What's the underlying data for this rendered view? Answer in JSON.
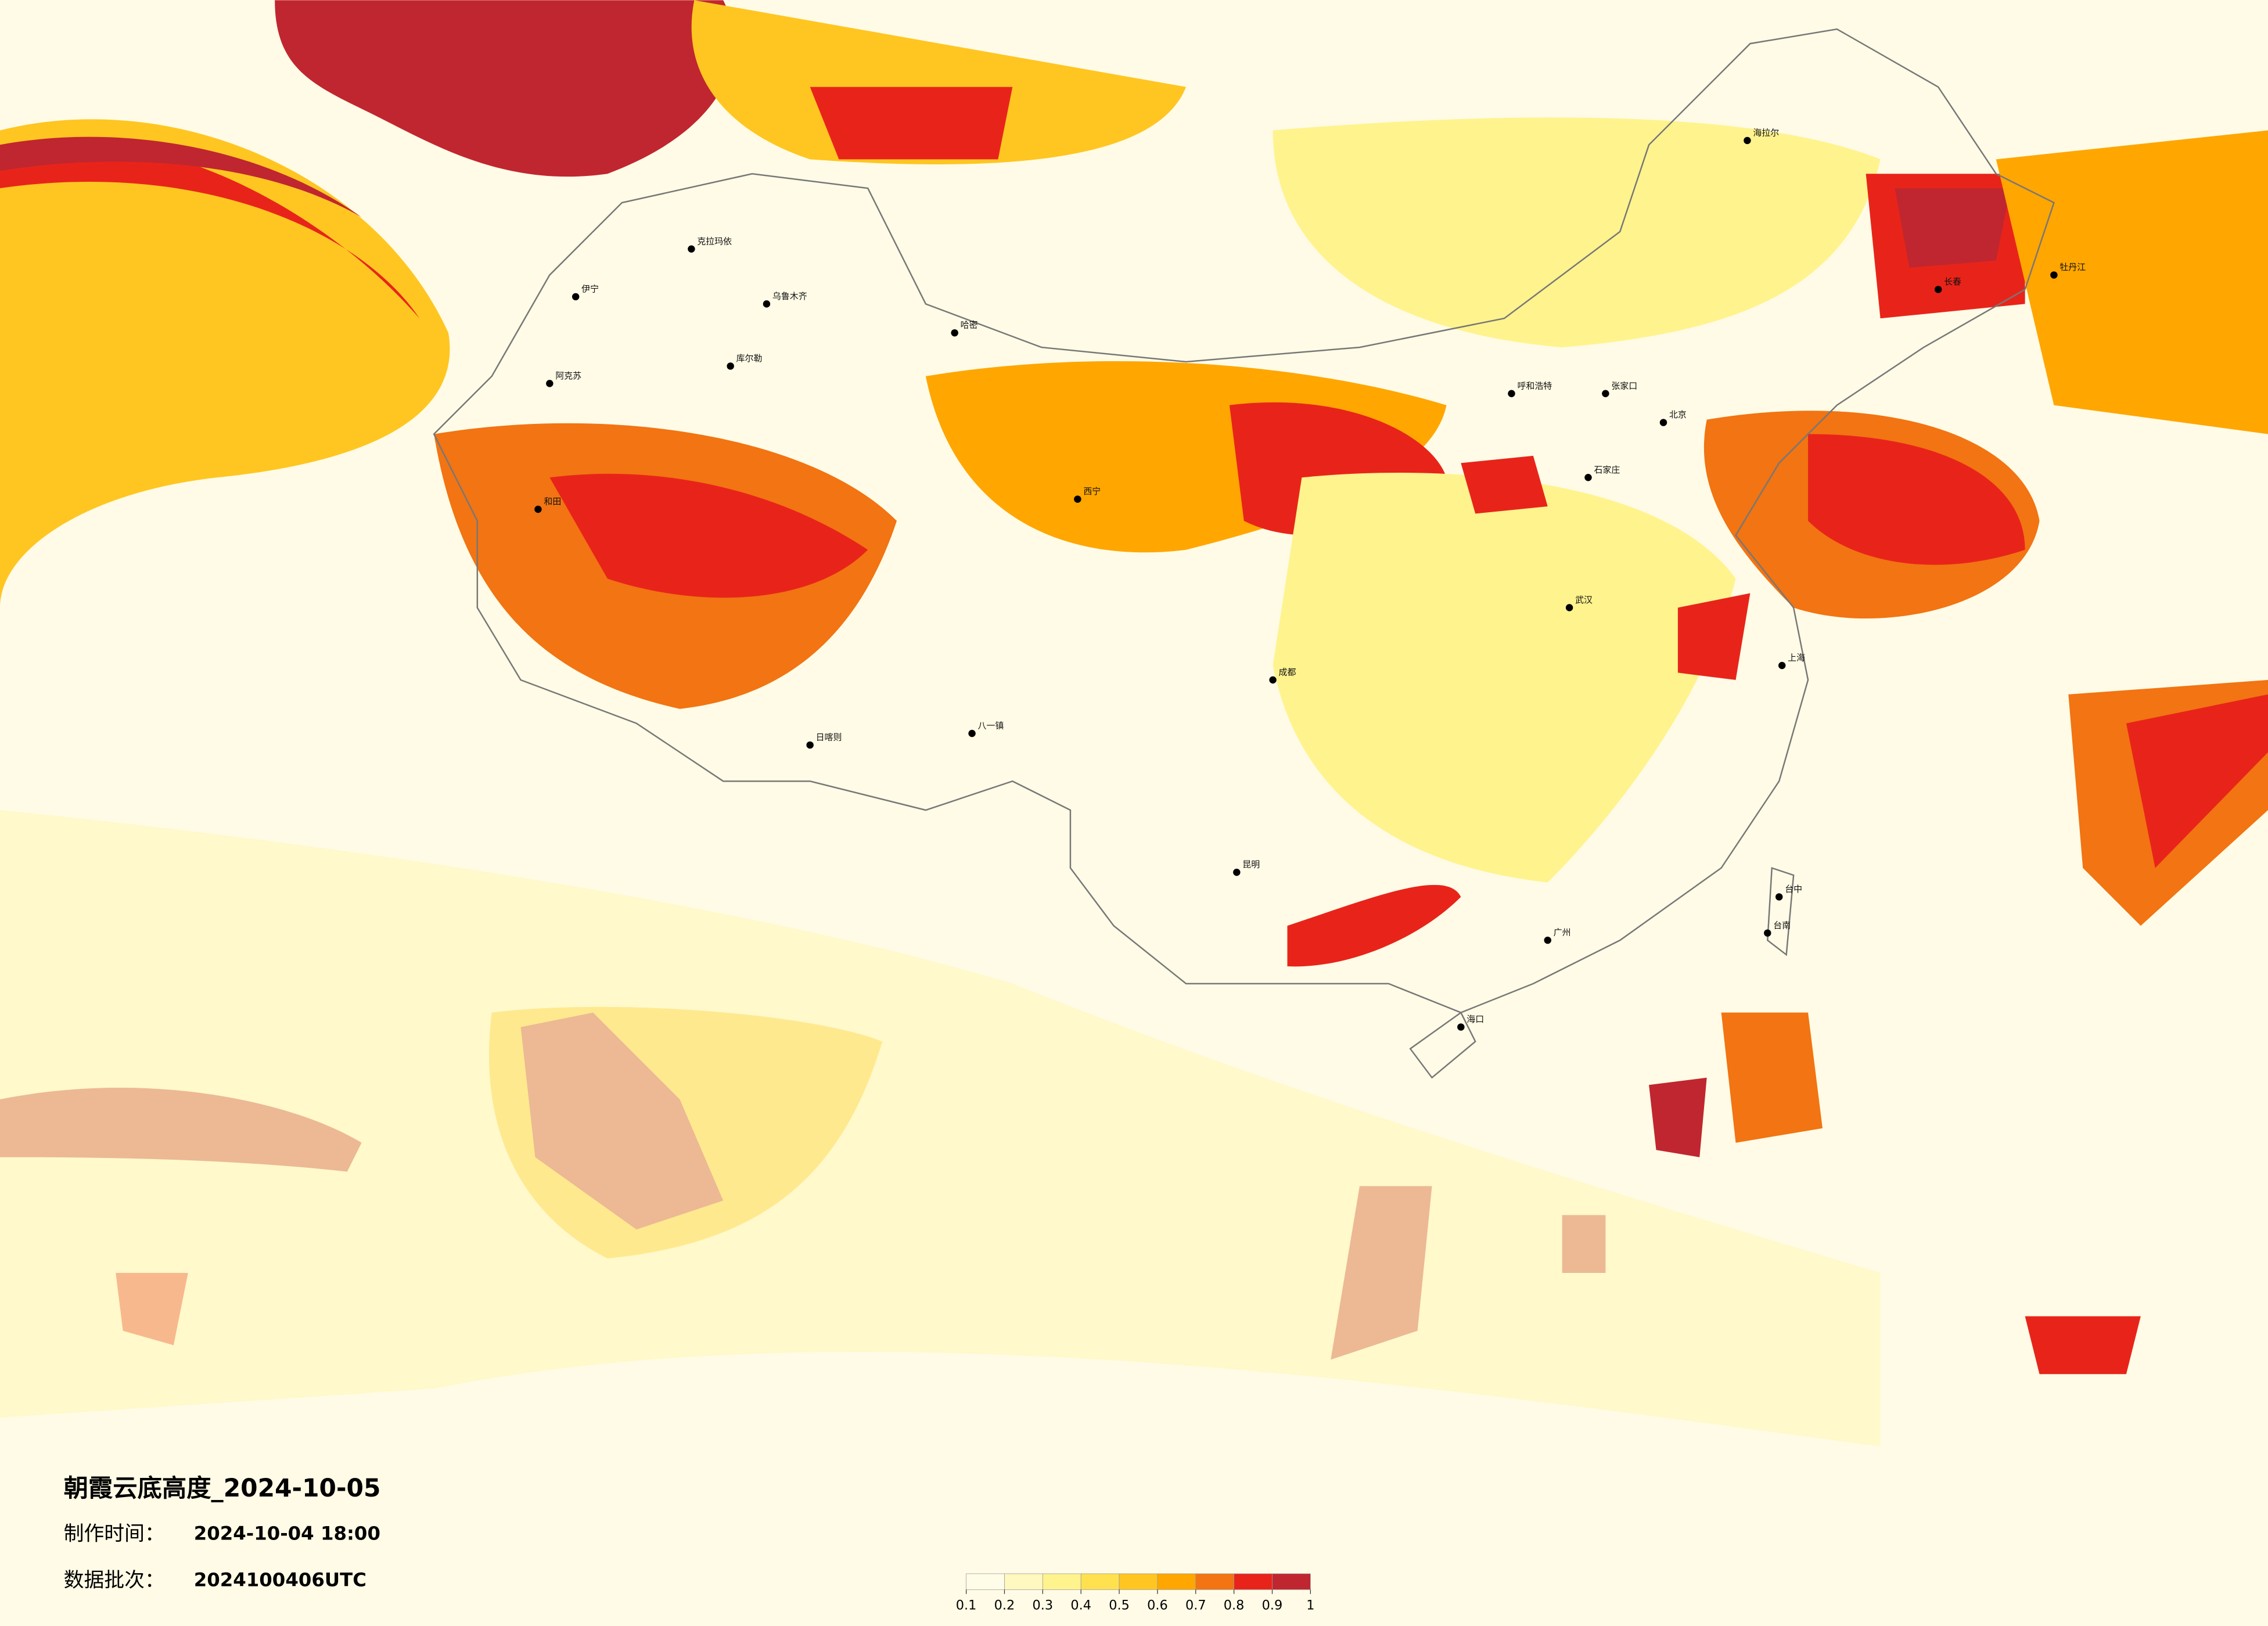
{
  "title": "朝霞云底高度_2024-10-05",
  "made_label": "制作时间：",
  "made_time": "2024-10-04 18:00",
  "batch_label": "数据批次：",
  "batch": "2024100406UTC",
  "legend": {
    "ticks": [
      0.1,
      0.2,
      0.3,
      0.4,
      0.5,
      0.6,
      0.7,
      0.8,
      0.9,
      1
    ],
    "colors": [
      "#fffde8",
      "#fff8bf",
      "#fff38e",
      "#ffe14f",
      "#ffc621",
      "#ffa600",
      "#f27412",
      "#e8241a",
      "#c0262f"
    ]
  },
  "cities": [
    "克拉玛依",
    "乌鲁木齐",
    "伊宁",
    "库尔勒",
    "哈密",
    "阿克苏",
    "和田",
    "日喀则",
    "八一镇",
    "西宁",
    "呼和浩特",
    "张家口",
    "石家庄",
    "北京",
    "海拉尔",
    "长春",
    "牡丹江",
    "上海",
    "广州",
    "海口",
    "台中",
    "台南",
    "昆明",
    "成都",
    "武汉"
  ]
}
